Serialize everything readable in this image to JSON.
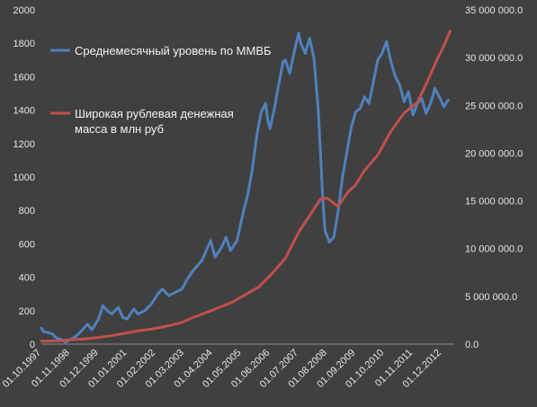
{
  "chart_data": {
    "type": "line",
    "title": "",
    "xlabel": "",
    "ylabel": "",
    "grid": false,
    "legend_position": "top-left (inside plot)",
    "x_ticks": [
      "01.10.1997",
      "01.11.1998",
      "01.12.1999",
      "01.01.2001",
      "01.02.2002",
      "01.03.2003",
      "01.04.2004",
      "01.05.2005",
      "01.06.2006",
      "01.07.2007",
      "01.08.2008",
      "01.09.2009",
      "01.10.2010",
      "01.11.2011",
      "01.12.2012"
    ],
    "x_range": [
      1997.75,
      2013.4
    ],
    "y_left": {
      "ylim": [
        0,
        2000
      ],
      "ticks": [
        "0",
        "200",
        "400",
        "600",
        "800",
        "1000",
        "1200",
        "1400",
        "1600",
        "1800",
        "2000"
      ]
    },
    "y_right": {
      "ylim": [
        0,
        35000000
      ],
      "ticks": [
        "0.0",
        "5 000 000.0",
        "10 000 000.0",
        "15 000 000.0",
        "20 000 000.0",
        "25 000 000.0",
        "30 000 000.0",
        "35 000 000.0"
      ]
    },
    "series": [
      {
        "name": "Среднемесячный уровень по ММВБ",
        "axis": "left",
        "color": "#4f81bd",
        "points": [
          [
            "1997-10",
            95
          ],
          [
            "1997-11",
            75
          ],
          [
            "1998-01",
            70
          ],
          [
            "1998-03",
            60
          ],
          [
            "1998-05",
            35
          ],
          [
            "1998-07",
            28
          ],
          [
            "1998-09",
            12
          ],
          [
            "1998-11",
            25
          ],
          [
            "1999-02",
            50
          ],
          [
            "1999-05",
            90
          ],
          [
            "1999-07",
            120
          ],
          [
            "1999-09",
            85
          ],
          [
            "1999-12",
            150
          ],
          [
            "2000-02",
            230
          ],
          [
            "2000-04",
            200
          ],
          [
            "2000-06",
            180
          ],
          [
            "2000-09",
            220
          ],
          [
            "2000-11",
            160
          ],
          [
            "2001-01",
            150
          ],
          [
            "2001-04",
            210
          ],
          [
            "2001-06",
            180
          ],
          [
            "2001-09",
            200
          ],
          [
            "2001-12",
            240
          ],
          [
            "2002-03",
            300
          ],
          [
            "2002-05",
            330
          ],
          [
            "2002-08",
            290
          ],
          [
            "2002-11",
            310
          ],
          [
            "2003-02",
            330
          ],
          [
            "2003-04",
            380
          ],
          [
            "2003-07",
            440
          ],
          [
            "2003-09",
            470
          ],
          [
            "2003-11",
            500
          ],
          [
            "2004-01",
            560
          ],
          [
            "2004-03",
            620
          ],
          [
            "2004-05",
            520
          ],
          [
            "2004-08",
            580
          ],
          [
            "2004-10",
            640
          ],
          [
            "2004-12",
            560
          ],
          [
            "2005-03",
            620
          ],
          [
            "2005-06",
            800
          ],
          [
            "2005-08",
            900
          ],
          [
            "2005-10",
            1050
          ],
          [
            "2005-12",
            1250
          ],
          [
            "2006-02",
            1390
          ],
          [
            "2006-04",
            1440
          ],
          [
            "2006-05",
            1340
          ],
          [
            "2006-06",
            1290
          ],
          [
            "2006-08",
            1410
          ],
          [
            "2006-10",
            1560
          ],
          [
            "2006-12",
            1690
          ],
          [
            "2007-01",
            1700
          ],
          [
            "2007-03",
            1620
          ],
          [
            "2007-05",
            1750
          ],
          [
            "2007-07",
            1860
          ],
          [
            "2007-08",
            1800
          ],
          [
            "2007-10",
            1740
          ],
          [
            "2007-12",
            1830
          ],
          [
            "2008-02",
            1710
          ],
          [
            "2008-04",
            1390
          ],
          [
            "2008-06",
            870
          ],
          [
            "2008-07",
            680
          ],
          [
            "2008-09",
            610
          ],
          [
            "2008-11",
            640
          ],
          [
            "2009-01",
            800
          ],
          [
            "2009-03",
            1000
          ],
          [
            "2009-05",
            1150
          ],
          [
            "2009-07",
            1300
          ],
          [
            "2009-09",
            1390
          ],
          [
            "2009-11",
            1410
          ],
          [
            "2010-01",
            1480
          ],
          [
            "2010-03",
            1440
          ],
          [
            "2010-05",
            1570
          ],
          [
            "2010-07",
            1700
          ],
          [
            "2010-09",
            1740
          ],
          [
            "2010-11",
            1810
          ],
          [
            "2011-01",
            1690
          ],
          [
            "2011-03",
            1600
          ],
          [
            "2011-05",
            1550
          ],
          [
            "2011-07",
            1450
          ],
          [
            "2011-09",
            1510
          ],
          [
            "2011-11",
            1370
          ],
          [
            "2012-01",
            1440
          ],
          [
            "2012-03",
            1470
          ],
          [
            "2012-05",
            1380
          ],
          [
            "2012-07",
            1440
          ],
          [
            "2012-09",
            1530
          ],
          [
            "2012-11",
            1480
          ],
          [
            "2013-01",
            1420
          ],
          [
            "2013-03",
            1460
          ]
        ]
      },
      {
        "name": "Широкая рублевая денежная масса в млн руб",
        "axis": "right",
        "color": "#c0504d",
        "points": [
          [
            "1997-10",
            300000
          ],
          [
            "1998-06",
            340000
          ],
          [
            "1999-01",
            480000
          ],
          [
            "1999-07",
            560000
          ],
          [
            "2000-01",
            720000
          ],
          [
            "2000-07",
            920000
          ],
          [
            "2001-01",
            1180000
          ],
          [
            "2001-07",
            1420000
          ],
          [
            "2002-01",
            1600000
          ],
          [
            "2002-07",
            1880000
          ],
          [
            "2003-01",
            2200000
          ],
          [
            "2003-07",
            2780000
          ],
          [
            "2004-01",
            3300000
          ],
          [
            "2004-07",
            3850000
          ],
          [
            "2005-01",
            4400000
          ],
          [
            "2005-07",
            5200000
          ],
          [
            "2006-01",
            6000000
          ],
          [
            "2006-07",
            7400000
          ],
          [
            "2007-01",
            9000000
          ],
          [
            "2007-07",
            11700000
          ],
          [
            "2008-01",
            13800000
          ],
          [
            "2008-05",
            15200000
          ],
          [
            "2008-08",
            15300000
          ],
          [
            "2009-01",
            14400000
          ],
          [
            "2009-05",
            15800000
          ],
          [
            "2009-09",
            16700000
          ],
          [
            "2010-01",
            18200000
          ],
          [
            "2010-07",
            19800000
          ],
          [
            "2011-01",
            22300000
          ],
          [
            "2011-07",
            24200000
          ],
          [
            "2012-01",
            25300000
          ],
          [
            "2012-05",
            27200000
          ],
          [
            "2012-10",
            29800000
          ],
          [
            "2013-01",
            31200000
          ],
          [
            "2013-04",
            32800000
          ]
        ]
      }
    ]
  }
}
